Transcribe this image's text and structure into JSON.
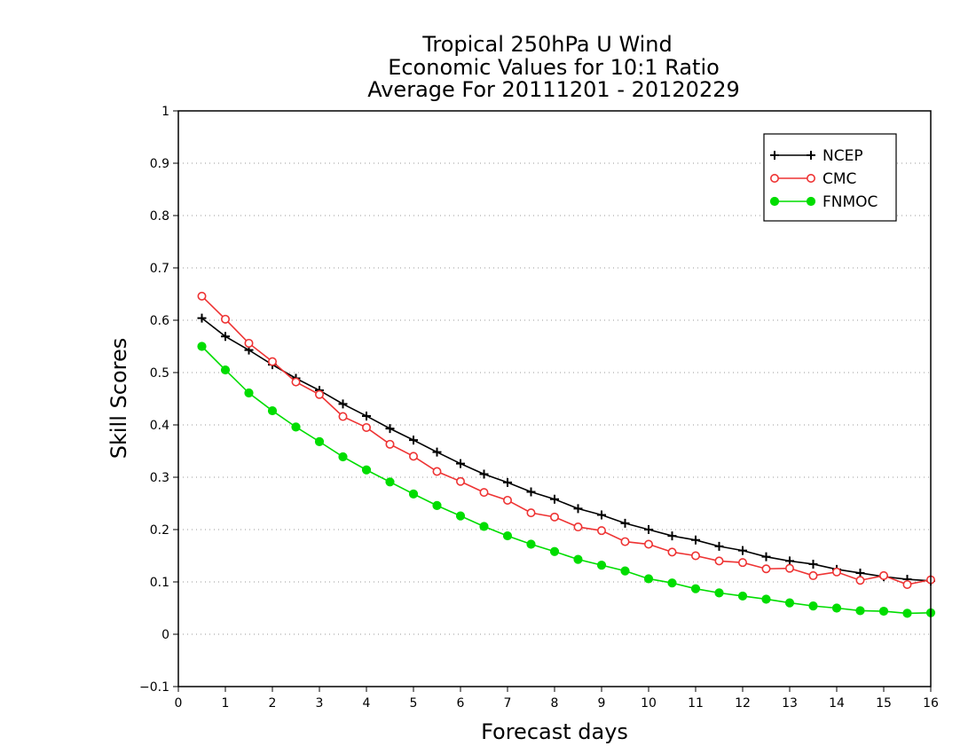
{
  "chart_data": {
    "type": "line",
    "title_lines": [
      "Tropical 250hPa U Wind",
      "Economic Values for 10:1 Ratio",
      "Average For 20111201 - 20120229"
    ],
    "xlabel": "Forecast days",
    "ylabel": "Skill Scores",
    "xlim": [
      0,
      16
    ],
    "ylim": [
      -0.1,
      1
    ],
    "x_ticks": [
      "0",
      "1",
      "2",
      "3",
      "4",
      "5",
      "6",
      "7",
      "8",
      "9",
      "10",
      "11",
      "12",
      "13",
      "14",
      "15",
      "16"
    ],
    "y_ticks": [
      "-0.1",
      "0",
      "0.1",
      "0.2",
      "0.3",
      "0.4",
      "0.5",
      "0.6",
      "0.7",
      "0.8",
      "0.9",
      "1"
    ],
    "grid": "horizontal dotted",
    "legend_position": "top-right",
    "x": [
      0.5,
      1,
      1.5,
      2,
      2.5,
      3,
      3.5,
      4,
      4.5,
      5,
      5.5,
      6,
      6.5,
      7,
      7.5,
      8,
      8.5,
      9,
      9.5,
      10,
      10.5,
      11,
      11.5,
      12,
      12.5,
      13,
      13.5,
      14,
      14.5,
      15,
      15.5,
      16
    ],
    "series": [
      {
        "name": "NCEP",
        "color": "#000000",
        "marker": "plus",
        "values": [
          0.604,
          0.569,
          0.543,
          0.515,
          0.489,
          0.466,
          0.44,
          0.417,
          0.393,
          0.371,
          0.348,
          0.326,
          0.306,
          0.29,
          0.272,
          0.258,
          0.24,
          0.228,
          0.212,
          0.2,
          0.188,
          0.18,
          0.168,
          0.16,
          0.148,
          0.14,
          0.134,
          0.124,
          0.117,
          0.11,
          0.105,
          0.102
        ]
      },
      {
        "name": "CMC",
        "color": "#ee3333",
        "marker": "open-circle",
        "values": [
          0.646,
          0.602,
          0.556,
          0.521,
          0.482,
          0.458,
          0.416,
          0.395,
          0.363,
          0.34,
          0.311,
          0.292,
          0.271,
          0.256,
          0.232,
          0.224,
          0.205,
          0.198,
          0.177,
          0.172,
          0.157,
          0.15,
          0.14,
          0.137,
          0.125,
          0.126,
          0.112,
          0.119,
          0.103,
          0.112,
          0.095,
          0.104
        ]
      },
      {
        "name": "FNMOC",
        "color": "#00dd00",
        "marker": "filled-circle",
        "values": [
          0.55,
          0.505,
          0.461,
          0.427,
          0.396,
          0.368,
          0.339,
          0.314,
          0.291,
          0.268,
          0.246,
          0.226,
          0.206,
          0.188,
          0.172,
          0.158,
          0.143,
          0.132,
          0.121,
          0.106,
          0.098,
          0.087,
          0.079,
          0.073,
          0.067,
          0.06,
          0.054,
          0.05,
          0.045,
          0.044,
          0.04,
          0.041
        ]
      }
    ]
  }
}
